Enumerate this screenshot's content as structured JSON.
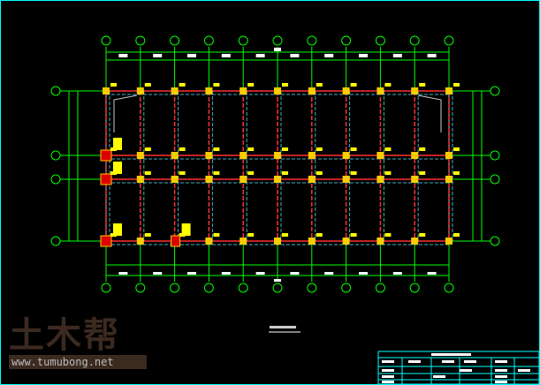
{
  "drawing": {
    "colors": {
      "background": "#000000",
      "frame": "#00ffff",
      "axis": "#00ff00",
      "column": "#ffcc00",
      "beam": "#ff3030",
      "beam_dash": "#3fb0c0",
      "label": "#ffff00",
      "title_block": "#00ffff"
    },
    "column_axes_count": 11,
    "row_axes_count": 4
  },
  "watermark": {
    "logo_text": "土木帮",
    "url": "www.tumubong.net"
  }
}
